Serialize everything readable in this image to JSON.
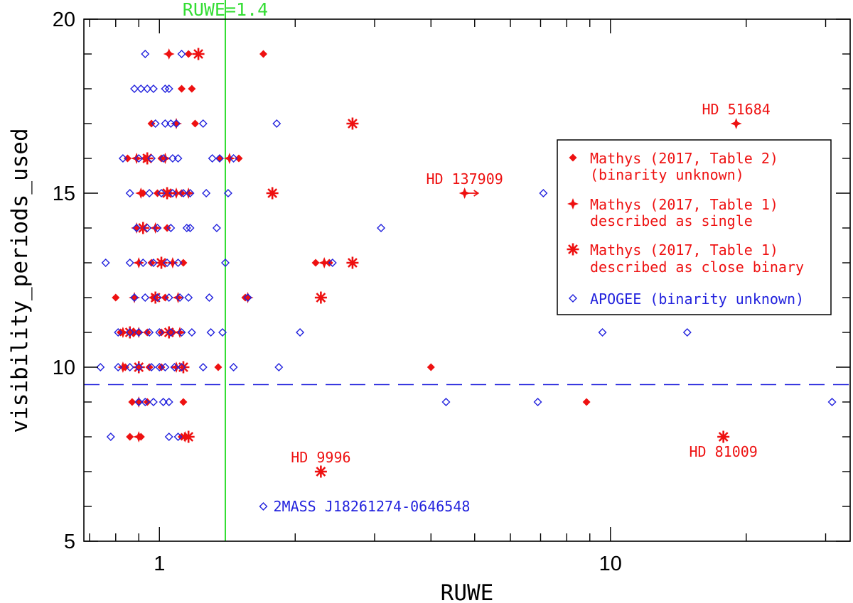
{
  "chart_data": {
    "type": "scatter",
    "title": "",
    "xlabel": "RUWE",
    "ylabel": "visibility_periods_used",
    "xscale": "log",
    "xlim": [
      0.68,
      34
    ],
    "ylim": [
      5,
      20
    ],
    "x_tick_labels": [
      {
        "value": 1,
        "label": "1"
      },
      {
        "value": 10,
        "label": "10"
      }
    ],
    "y_tick_labels": [
      {
        "value": 5,
        "label": "5"
      },
      {
        "value": 10,
        "label": "10"
      },
      {
        "value": 15,
        "label": "15"
      },
      {
        "value": 20,
        "label": "20"
      }
    ],
    "reference_lines": [
      {
        "orientation": "vertical",
        "value": 1.4,
        "label": "RUWE=1.4",
        "color": "#33dd33"
      },
      {
        "orientation": "horizontal",
        "value": 9.5,
        "label": "",
        "color": "#2222dd"
      }
    ],
    "legend_position": "right",
    "series": [
      {
        "name": "Mathys (2017, Table 2) (binarity unknown)",
        "legend_lines": [
          "Mathys (2017, Table 2)",
          "(binarity unknown)"
        ],
        "marker": "filled-diamond",
        "color": "#ee1111",
        "points": [
          [
            1.05,
            19
          ],
          [
            1.16,
            19
          ],
          [
            1.7,
            19
          ],
          [
            1.12,
            18
          ],
          [
            1.18,
            18
          ],
          [
            0.96,
            17
          ],
          [
            1.09,
            17
          ],
          [
            1.2,
            17
          ],
          [
            0.85,
            16
          ],
          [
            0.93,
            16
          ],
          [
            1.01,
            16
          ],
          [
            1.36,
            16
          ],
          [
            1.5,
            16
          ],
          [
            0.92,
            15
          ],
          [
            0.99,
            15
          ],
          [
            1.05,
            15
          ],
          [
            1.12,
            15
          ],
          [
            1.04,
            14
          ],
          [
            0.96,
            13
          ],
          [
            1.01,
            13
          ],
          [
            1.13,
            13
          ],
          [
            2.22,
            13
          ],
          [
            2.38,
            13
          ],
          [
            0.8,
            12
          ],
          [
            0.97,
            12
          ],
          [
            1.03,
            12
          ],
          [
            1.55,
            12
          ],
          [
            0.82,
            11
          ],
          [
            0.88,
            11
          ],
          [
            0.94,
            11
          ],
          [
            1.01,
            11
          ],
          [
            1.07,
            11
          ],
          [
            0.84,
            10
          ],
          [
            0.95,
            10
          ],
          [
            1.01,
            10
          ],
          [
            1.35,
            10
          ],
          [
            4.0,
            10
          ],
          [
            0.87,
            9
          ],
          [
            0.94,
            9
          ],
          [
            1.13,
            9
          ],
          [
            8.85,
            9
          ],
          [
            0.86,
            8
          ],
          [
            0.91,
            8
          ],
          [
            1.12,
            8
          ]
        ]
      },
      {
        "name": "Mathys (2017, Table 1) described as single",
        "legend_lines": [
          "Mathys (2017, Table 1)",
          "described as single"
        ],
        "marker": "filled-star4",
        "color": "#ee1111",
        "points": [
          [
            1.05,
            19
          ],
          [
            1.09,
            17
          ],
          [
            19.0,
            17
          ],
          [
            0.89,
            16
          ],
          [
            1.03,
            16
          ],
          [
            1.43,
            16
          ],
          [
            0.91,
            15
          ],
          [
            1.09,
            15
          ],
          [
            1.16,
            15
          ],
          [
            4.75,
            15
          ],
          [
            0.89,
            14
          ],
          [
            0.98,
            14
          ],
          [
            0.9,
            13
          ],
          [
            1.07,
            13
          ],
          [
            2.32,
            13
          ],
          [
            0.88,
            12
          ],
          [
            1.1,
            12
          ],
          [
            1.57,
            12
          ],
          [
            0.83,
            11
          ],
          [
            0.9,
            11
          ],
          [
            1.11,
            11
          ],
          [
            0.83,
            10
          ],
          [
            1.09,
            10
          ],
          [
            0.9,
            9
          ],
          [
            0.9,
            8
          ],
          [
            1.14,
            8
          ]
        ]
      },
      {
        "name": "Mathys (2017, Table 1) described as close binary",
        "legend_lines": [
          "Mathys (2017, Table 1)",
          "described as close binary"
        ],
        "marker": "asterisk",
        "color": "#ee1111",
        "points": [
          [
            1.22,
            19
          ],
          [
            2.68,
            17
          ],
          [
            0.94,
            16
          ],
          [
            1.04,
            15
          ],
          [
            1.78,
            15
          ],
          [
            0.92,
            14
          ],
          [
            1.01,
            13
          ],
          [
            2.68,
            13
          ],
          [
            0.98,
            12
          ],
          [
            2.28,
            12
          ],
          [
            0.86,
            11
          ],
          [
            1.05,
            11
          ],
          [
            0.9,
            10
          ],
          [
            1.13,
            10
          ],
          [
            1.16,
            8
          ],
          [
            17.8,
            8
          ],
          [
            2.28,
            7
          ]
        ]
      },
      {
        "name": "APOGEE (binarity unknown)",
        "legend_lines": [
          "APOGEE (binarity unknown)"
        ],
        "marker": "open-diamond",
        "color": "#2222dd",
        "points": [
          [
            0.93,
            19
          ],
          [
            1.12,
            19
          ],
          [
            0.88,
            18
          ],
          [
            0.91,
            18
          ],
          [
            0.94,
            18
          ],
          [
            0.97,
            18
          ],
          [
            1.03,
            18
          ],
          [
            1.05,
            18
          ],
          [
            0.98,
            17
          ],
          [
            1.03,
            17
          ],
          [
            1.06,
            17
          ],
          [
            1.09,
            17
          ],
          [
            1.25,
            17
          ],
          [
            1.82,
            17
          ],
          [
            0.83,
            16
          ],
          [
            0.9,
            16
          ],
          [
            0.96,
            16
          ],
          [
            1.02,
            16
          ],
          [
            1.07,
            16
          ],
          [
            1.1,
            16
          ],
          [
            1.31,
            16
          ],
          [
            1.36,
            16
          ],
          [
            1.46,
            16
          ],
          [
            0.86,
            15
          ],
          [
            0.95,
            15
          ],
          [
            1.01,
            15
          ],
          [
            1.07,
            15
          ],
          [
            1.13,
            15
          ],
          [
            1.17,
            15
          ],
          [
            1.27,
            15
          ],
          [
            1.42,
            15
          ],
          [
            7.1,
            15
          ],
          [
            0.89,
            14
          ],
          [
            0.94,
            14
          ],
          [
            0.99,
            14
          ],
          [
            1.06,
            14
          ],
          [
            1.15,
            14
          ],
          [
            1.17,
            14
          ],
          [
            1.34,
            14
          ],
          [
            3.1,
            14
          ],
          [
            0.76,
            13
          ],
          [
            0.86,
            13
          ],
          [
            0.92,
            13
          ],
          [
            0.97,
            13
          ],
          [
            1.04,
            13
          ],
          [
            1.1,
            13
          ],
          [
            1.4,
            13
          ],
          [
            2.42,
            13
          ],
          [
            0.88,
            12
          ],
          [
            0.93,
            12
          ],
          [
            0.99,
            12
          ],
          [
            1.05,
            12
          ],
          [
            1.11,
            12
          ],
          [
            1.16,
            12
          ],
          [
            1.29,
            12
          ],
          [
            1.57,
            12
          ],
          [
            0.81,
            11
          ],
          [
            0.86,
            11
          ],
          [
            0.9,
            11
          ],
          [
            0.95,
            11
          ],
          [
            1.0,
            11
          ],
          [
            1.06,
            11
          ],
          [
            1.12,
            11
          ],
          [
            1.18,
            11
          ],
          [
            1.3,
            11
          ],
          [
            1.38,
            11
          ],
          [
            2.05,
            11
          ],
          [
            9.6,
            11
          ],
          [
            14.8,
            11
          ],
          [
            0.74,
            10
          ],
          [
            0.81,
            10
          ],
          [
            0.86,
            10
          ],
          [
            0.9,
            10
          ],
          [
            0.96,
            10
          ],
          [
            1.0,
            10
          ],
          [
            1.03,
            10
          ],
          [
            1.08,
            10
          ],
          [
            1.12,
            10
          ],
          [
            1.25,
            10
          ],
          [
            1.46,
            10
          ],
          [
            1.84,
            10
          ],
          [
            0.9,
            9
          ],
          [
            0.93,
            9
          ],
          [
            0.97,
            9
          ],
          [
            1.02,
            9
          ],
          [
            1.05,
            9
          ],
          [
            4.32,
            9
          ],
          [
            6.9,
            9
          ],
          [
            31,
            9
          ],
          [
            0.78,
            8
          ],
          [
            1.05,
            8
          ],
          [
            1.1,
            8
          ],
          [
            1.7,
            6
          ]
        ]
      }
    ],
    "annotations": [
      {
        "text": "HD 51684",
        "x": 19.0,
        "y": 17,
        "color": "#ee1111",
        "position": "above"
      },
      {
        "text": "HD 137909",
        "x": 4.75,
        "y": 15,
        "color": "#ee1111",
        "position": "above"
      },
      {
        "text": "HD 9996",
        "x": 2.28,
        "y": 7,
        "color": "#ee1111",
        "position": "above"
      },
      {
        "text": "HD 81009",
        "x": 17.8,
        "y": 8,
        "color": "#ee1111",
        "position": "below"
      },
      {
        "text": "2MASS J18261274-0646548",
        "x": 1.7,
        "y": 6,
        "color": "#2222dd",
        "position": "right"
      }
    ],
    "lower_limit_arrow": {
      "x": 4.75,
      "y": 15,
      "direction": "right",
      "color": "#ee1111"
    }
  }
}
